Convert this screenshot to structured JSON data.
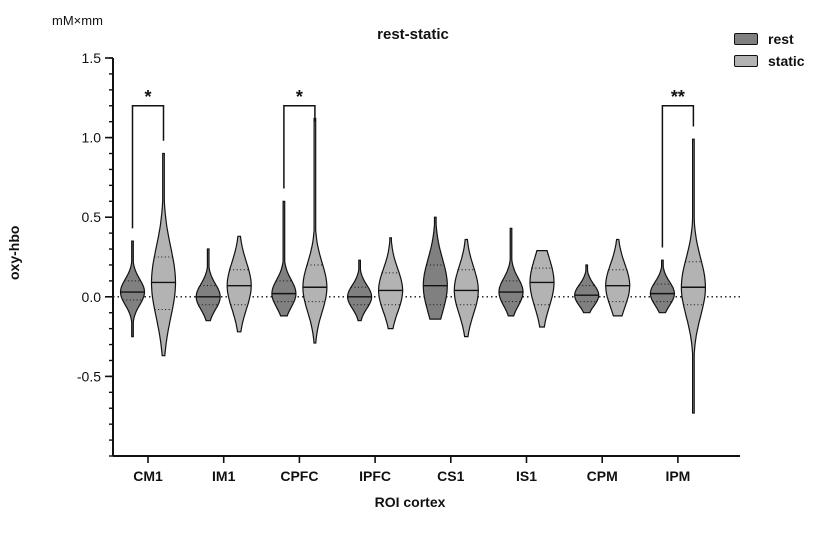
{
  "chart_data": {
    "type": "violin",
    "title": "rest-static",
    "unit_label": "mM×mm",
    "ylabel": "oxy-hbo",
    "xlabel": "ROI cortex",
    "ylim": [
      -1.0,
      1.5
    ],
    "yticks": [
      "1.5",
      "1.0",
      "0.5",
      "0.0",
      "-0.5"
    ],
    "ytick_values": [
      1.5,
      1.0,
      0.5,
      0.0,
      -0.5
    ],
    "reference_line": 0.0,
    "categories": [
      "CM1",
      "IM1",
      "CPFC",
      "IPFC",
      "CS1",
      "IS1",
      "CPM",
      "IPM"
    ],
    "series": [
      {
        "name": "rest",
        "color": "#808080",
        "min": [
          -0.25,
          -0.15,
          -0.12,
          -0.15,
          -0.14,
          -0.12,
          -0.1,
          -0.1
        ],
        "max": [
          0.35,
          0.3,
          0.6,
          0.23,
          0.5,
          0.43,
          0.2,
          0.23
        ],
        "median": [
          0.03,
          0.0,
          0.02,
          0.0,
          0.07,
          0.03,
          0.01,
          0.02
        ],
        "q1": [
          -0.02,
          -0.05,
          -0.03,
          -0.05,
          -0.05,
          -0.03,
          -0.03,
          -0.03
        ],
        "q3": [
          0.1,
          0.07,
          0.1,
          0.06,
          0.2,
          0.1,
          0.07,
          0.08
        ]
      },
      {
        "name": "static",
        "color": "#b3b3b3",
        "min": [
          -0.37,
          -0.22,
          -0.29,
          -0.2,
          -0.25,
          -0.19,
          -0.12,
          -0.73
        ],
        "max": [
          0.9,
          0.38,
          1.12,
          0.37,
          0.36,
          0.29,
          0.36,
          0.99
        ],
        "median": [
          0.09,
          0.07,
          0.06,
          0.04,
          0.04,
          0.09,
          0.07,
          0.06
        ],
        "q1": [
          -0.08,
          -0.05,
          -0.03,
          -0.05,
          -0.05,
          -0.05,
          -0.03,
          -0.05
        ],
        "q3": [
          0.25,
          0.17,
          0.2,
          0.15,
          0.17,
          0.18,
          0.17,
          0.22
        ]
      }
    ],
    "significance": [
      {
        "category": "CM1",
        "label": "*"
      },
      {
        "category": "CPFC",
        "label": "*"
      },
      {
        "category": "IPM",
        "label": "**"
      }
    ],
    "legend_position": "top-right",
    "grid": false
  }
}
